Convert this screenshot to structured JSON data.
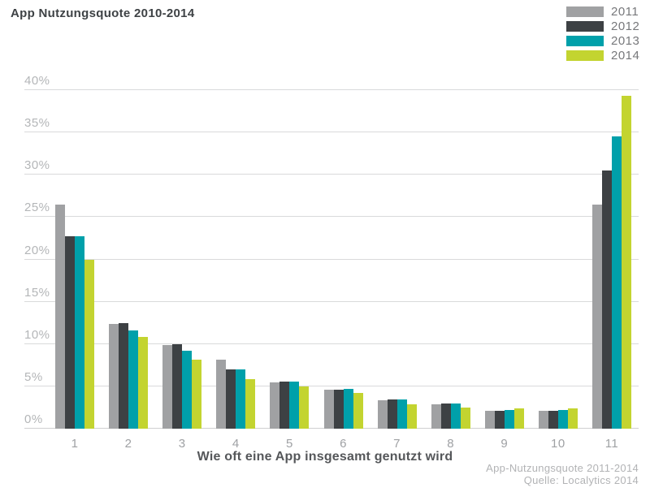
{
  "header": {
    "title": "App Nutzungsquote 2010-2014"
  },
  "legend": {
    "position": "top-right",
    "items": [
      {
        "label": "2011",
        "color": "#a0a1a3"
      },
      {
        "label": "2012",
        "color": "#3d4144"
      },
      {
        "label": "2013",
        "color": "#00a0aa"
      },
      {
        "label": "2014",
        "color": "#c3d430"
      }
    ]
  },
  "chart_data": {
    "type": "bar",
    "title": "App Nutzungsquote 2010-2014",
    "categories": [
      "1",
      "2",
      "3",
      "4",
      "5",
      "6",
      "7",
      "8",
      "9",
      "10",
      "11"
    ],
    "series": [
      {
        "name": "2011",
        "color": "#a0a1a3",
        "values": [
          26.5,
          12.4,
          9.9,
          8.2,
          5.5,
          4.6,
          3.4,
          2.9,
          2.1,
          2.1,
          26.5
        ]
      },
      {
        "name": "2012",
        "color": "#3d4144",
        "values": [
          22.7,
          12.5,
          10.0,
          7.0,
          5.6,
          4.6,
          3.5,
          3.0,
          2.1,
          2.1,
          30.5
        ]
      },
      {
        "name": "2013",
        "color": "#00a0aa",
        "values": [
          22.7,
          11.6,
          9.2,
          7.0,
          5.6,
          4.7,
          3.5,
          3.0,
          2.2,
          2.2,
          34.5
        ]
      },
      {
        "name": "2014",
        "color": "#c3d430",
        "values": [
          20.0,
          10.8,
          8.2,
          5.9,
          5.0,
          4.2,
          2.9,
          2.5,
          2.4,
          2.4,
          39.3
        ]
      }
    ],
    "xlabel": "Wie oft eine App insgesamt genutzt wird",
    "ylabel": "",
    "ylim": [
      0,
      40
    ],
    "ytick_step": 5,
    "ytick_labels": [
      "0%",
      "5%",
      "10%",
      "15%",
      "20%",
      "25%",
      "30%",
      "35%",
      "40%"
    ],
    "grid": true,
    "legend_position": "top-right"
  },
  "footer": {
    "line1": "App-Nutzungsquote 2011-2014",
    "line2": "Quelle: Localytics 2014"
  },
  "colors": {
    "background": "#ffffff",
    "gridline": "#d9dadb",
    "title_text": "#3e4245",
    "ytick_text": "#b4b6b8",
    "xtick_text": "#9fa1a4",
    "xlabel_text": "#55575a",
    "footer_text": "#b2b3b5",
    "legend_text": "#77787b"
  }
}
